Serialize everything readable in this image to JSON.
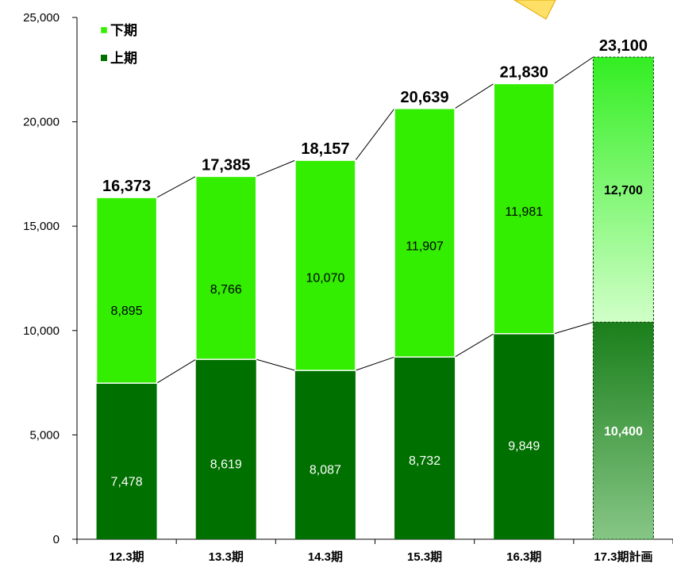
{
  "chart_data": {
    "type": "bar",
    "stacked": true,
    "categories": [
      "12.3期",
      "13.3期",
      "14.3期",
      "15.3期",
      "16.3期",
      "17.3期計画"
    ],
    "series": [
      {
        "name": "上期",
        "values": [
          7478,
          8619,
          8087,
          8732,
          9849,
          10400
        ]
      },
      {
        "name": "下期",
        "values": [
          8895,
          8766,
          10070,
          11907,
          11981,
          12700
        ]
      }
    ],
    "totals": [
      16373,
      17385,
      18157,
      20639,
      21830,
      23100
    ],
    "ylim": [
      0,
      25000
    ],
    "yticks": [
      0,
      5000,
      10000,
      15000,
      20000,
      25000
    ],
    "ytick_labels": [
      "0",
      "5,000",
      "10,000",
      "15,000",
      "20,000",
      "25,000"
    ],
    "value_labels_lower": [
      "7,478",
      "8,619",
      "8,087",
      "8,732",
      "9,849",
      "10,400"
    ],
    "value_labels_upper": [
      "8,895",
      "8,766",
      "10,070",
      "11,907",
      "11,981",
      "12,700"
    ],
    "total_labels": [
      "16,373",
      "17,385",
      "18,157",
      "20,639",
      "21,830",
      "23,100"
    ],
    "legend_placement": "top-left",
    "grid": false,
    "colors": {
      "lower": "#007000",
      "upper": "#33ee00",
      "plan_lower": "#7fbf7f",
      "plan_upper": "#c8ffb8",
      "callout": "#ffd700"
    }
  }
}
